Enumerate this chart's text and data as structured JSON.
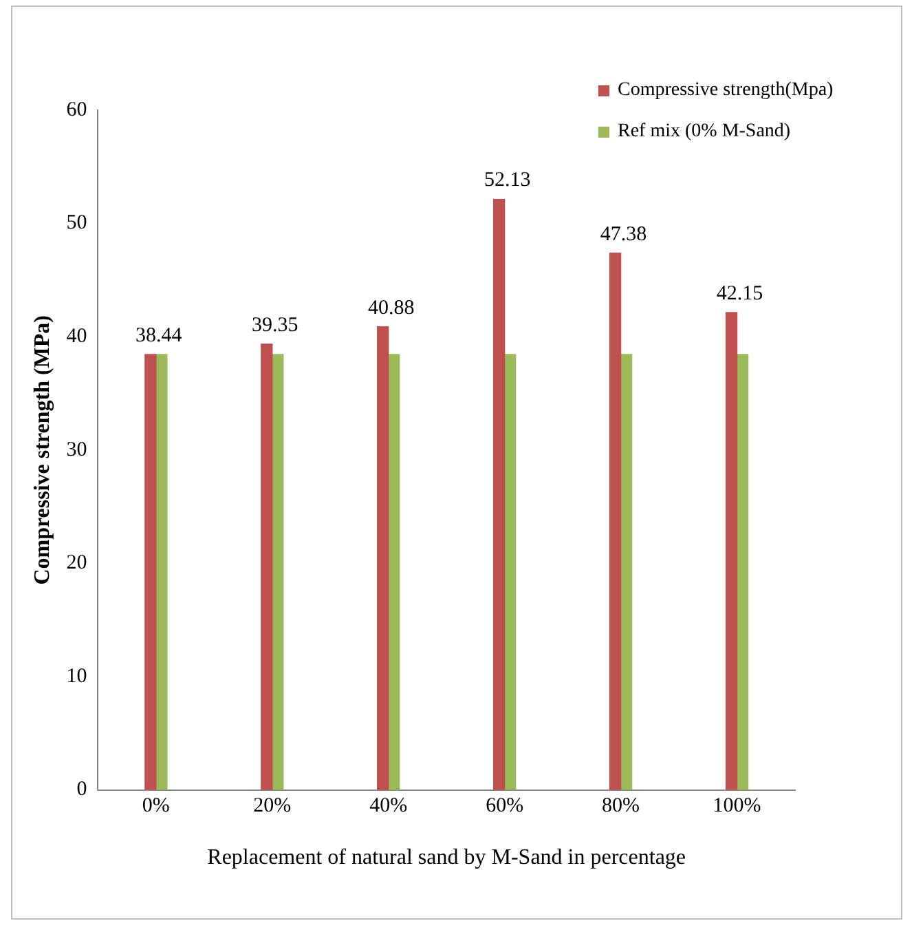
{
  "chart_data": {
    "type": "bar",
    "xlabel": "Replacement of natural sand by M-Sand in percentage",
    "ylabel": "Compressive strength (MPa)",
    "categories": [
      "0%",
      "20%",
      "40%",
      "60%",
      "80%",
      "100%"
    ],
    "series": [
      {
        "name": "Compressive strength(Mpa)",
        "color": "#c0504d",
        "values": [
          38.44,
          39.35,
          40.88,
          52.13,
          47.38,
          42.15
        ],
        "value_labels": [
          "38.44",
          "39.35",
          "40.88",
          "52.13",
          "47.38",
          "42.15"
        ]
      },
      {
        "name": "Ref mix (0% M-Sand)",
        "color": "#9bbb59",
        "values": [
          38.44,
          38.44,
          38.44,
          38.44,
          38.44,
          38.44
        ]
      }
    ],
    "ylim": [
      0,
      60
    ],
    "yticks": [
      0,
      10,
      20,
      30,
      40,
      50,
      60
    ],
    "grid": false,
    "legend": "top right"
  }
}
